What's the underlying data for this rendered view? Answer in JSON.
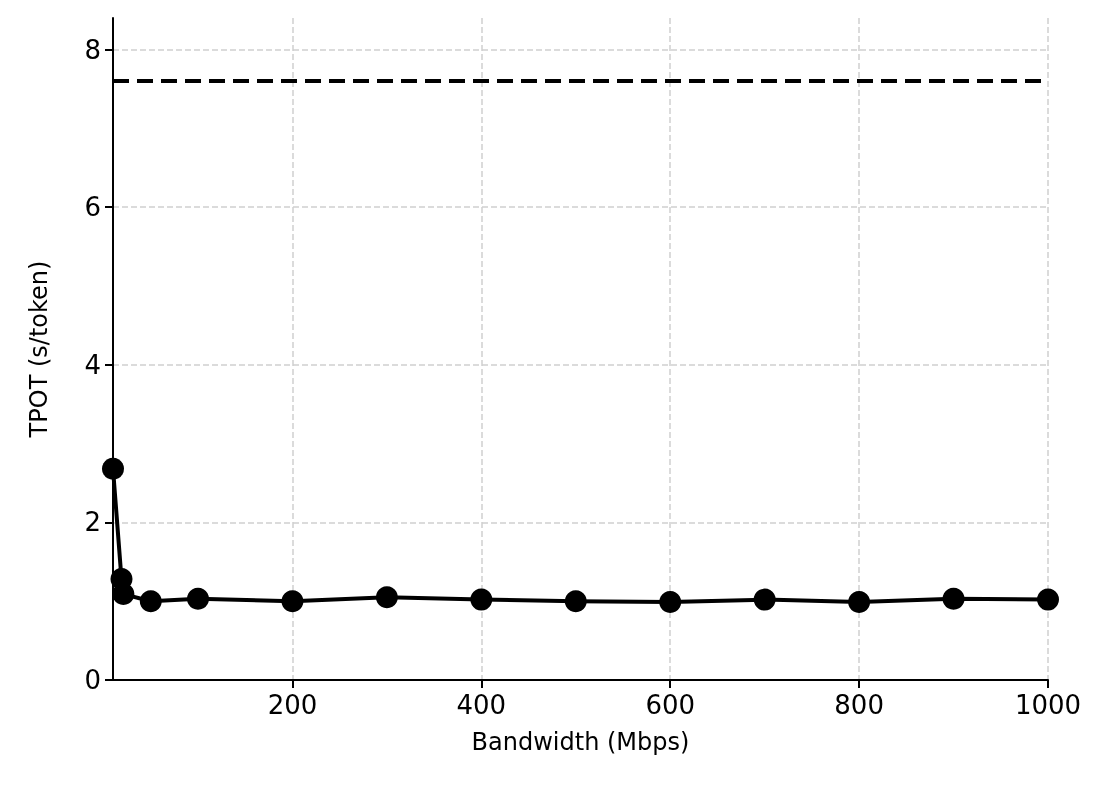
{
  "chart_data": {
    "type": "line",
    "xlabel": "Bandwidth (Mbps)",
    "ylabel": "TPOT (s/token)",
    "x": [
      10,
      19,
      21,
      50,
      100,
      200,
      300,
      400,
      500,
      600,
      700,
      800,
      900,
      1000
    ],
    "series": [
      {
        "color": "#000000",
        "values": [
          2.68,
          1.28,
          1.09,
          1.0,
          1.03,
          1.0,
          1.05,
          1.02,
          1.0,
          0.99,
          1.02,
          0.99,
          1.03,
          1.02
        ]
      }
    ],
    "ref_lines": [
      {
        "axis": "y",
        "value": 7.6,
        "color": "#000000",
        "line_style": "dashed"
      }
    ],
    "xlim": [
      10,
      1000
    ],
    "xticks": [
      200,
      400,
      600,
      800,
      1000
    ],
    "ylim": [
      0,
      8.4
    ],
    "yticks": [
      0,
      2,
      4,
      6,
      8
    ],
    "grid": true,
    "marker": "circle",
    "line_style": "solid"
  }
}
